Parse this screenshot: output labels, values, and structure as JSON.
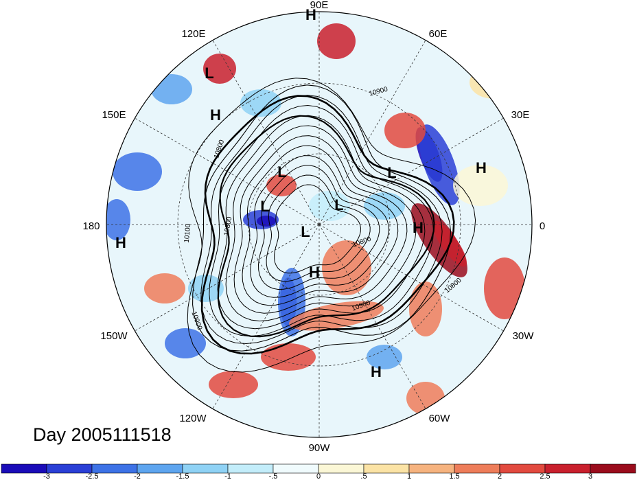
{
  "title": "Day 2005111518",
  "lon_labels": [
    "90E",
    "60E",
    "30E",
    "0",
    "30W",
    "60W",
    "90W",
    "120W",
    "150W",
    "180",
    "150E",
    "120E"
  ],
  "contour_labels": [
    "10900",
    "10800",
    "10100",
    "10800",
    "10900",
    "10800",
    "10800",
    "10900"
  ],
  "pressure_centers": [
    {
      "label": "H"
    },
    {
      "label": "L"
    },
    {
      "label": "H"
    },
    {
      "label": "L"
    },
    {
      "label": "L"
    },
    {
      "label": "H"
    },
    {
      "label": "L"
    },
    {
      "label": "L"
    },
    {
      "label": "L"
    },
    {
      "label": "H"
    },
    {
      "label": "H"
    },
    {
      "label": "H"
    },
    {
      "label": "H"
    }
  ],
  "colorbar": {
    "colors": [
      "#1a0cb8",
      "#2a3fd6",
      "#3d72e6",
      "#5ea5ef",
      "#8fd2f5",
      "#c3edfa",
      "#f0fbfd",
      "#fbf7d6",
      "#fbe3a5",
      "#f6b37f",
      "#ee7d5a",
      "#e24a3f",
      "#c9202d",
      "#9a0c1c"
    ],
    "tick_labels": [
      "-3",
      "-2.5",
      "-2",
      "-1.5",
      "-1",
      "-.5",
      "0",
      ".5",
      "1",
      "1.5",
      "2",
      "2.5",
      "3"
    ]
  }
}
